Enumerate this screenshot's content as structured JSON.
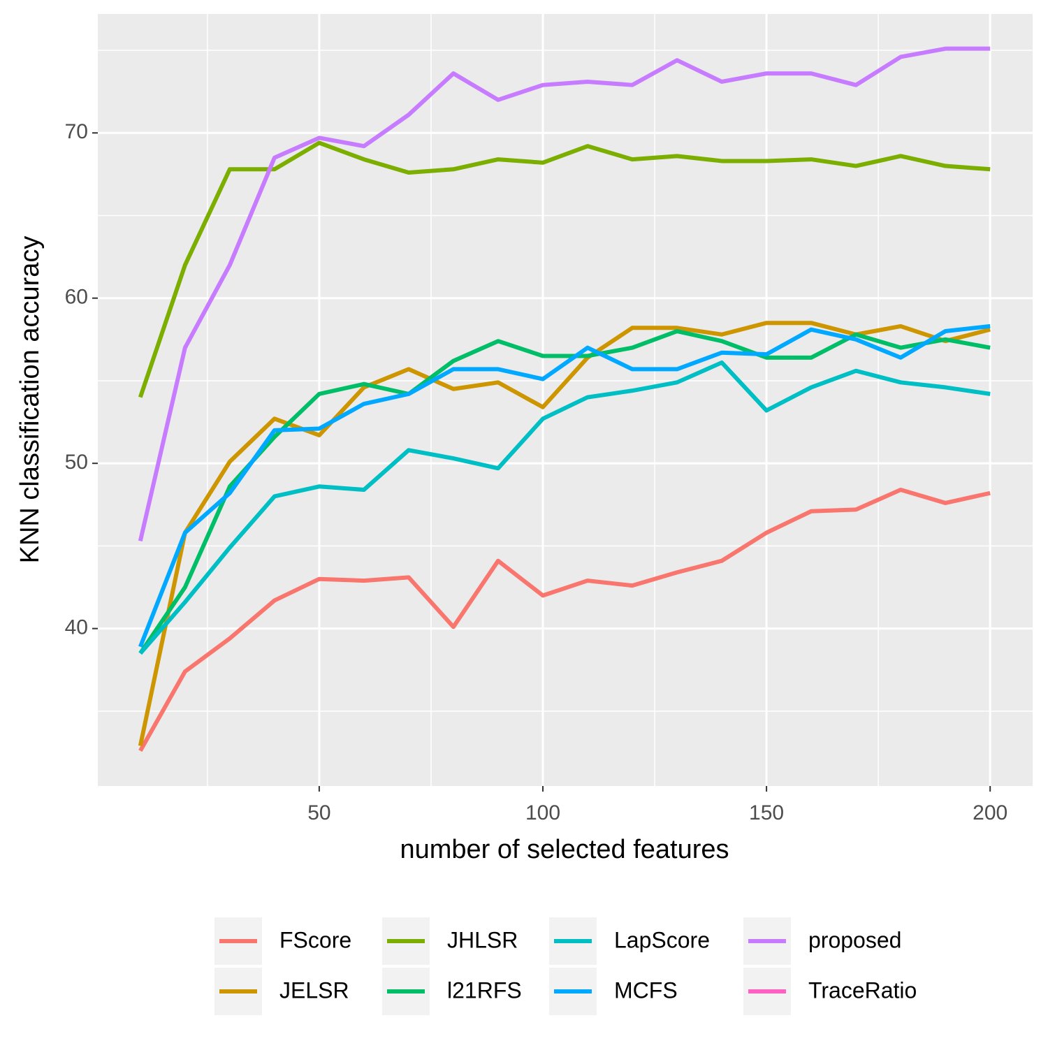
{
  "chart_data": {
    "type": "line",
    "xlabel": "number of selected features",
    "ylabel": "KNN classification accuracy",
    "x": [
      10,
      20,
      30,
      40,
      50,
      60,
      70,
      80,
      90,
      100,
      110,
      120,
      130,
      140,
      150,
      160,
      170,
      180,
      190,
      200
    ],
    "xlim": [
      0.5,
      209.5
    ],
    "xticks": [
      50,
      100,
      150,
      200
    ],
    "xminor_ticks": [
      25,
      75,
      125,
      175
    ],
    "ylim": [
      30.47,
      77.2
    ],
    "yticks": [
      40,
      50,
      60,
      70
    ],
    "yminor_ticks": [
      35,
      45,
      55,
      65,
      75
    ],
    "grid": true,
    "legend": "bottom",
    "series": [
      {
        "name": "FScore",
        "color": "#F8766D",
        "values": [
          32.6,
          37.4,
          39.4,
          41.7,
          43.0,
          42.9,
          43.1,
          40.1,
          44.1,
          42.0,
          42.9,
          42.6,
          43.4,
          44.1,
          45.8,
          47.1,
          47.2,
          48.4,
          47.6,
          48.2
        ]
      },
      {
        "name": "JELSR",
        "color": "#CD9600",
        "values": [
          32.9,
          45.8,
          50.1,
          52.7,
          51.7,
          54.6,
          55.7,
          54.5,
          54.9,
          53.4,
          56.4,
          58.2,
          58.2,
          57.8,
          58.5,
          58.5,
          57.8,
          58.3,
          57.4,
          58.1
        ]
      },
      {
        "name": "JHLSR",
        "color": "#7CAE00",
        "values": [
          54.0,
          62.0,
          67.8,
          67.8,
          69.4,
          68.4,
          67.6,
          67.8,
          68.4,
          68.2,
          69.2,
          68.4,
          68.6,
          68.3,
          68.3,
          68.4,
          68.0,
          68.6,
          68.0,
          67.8
        ]
      },
      {
        "name": "l21RFS",
        "color": "#00BE67",
        "values": [
          38.5,
          42.5,
          48.6,
          51.6,
          54.2,
          54.8,
          54.2,
          56.2,
          57.4,
          56.5,
          56.5,
          57.0,
          58.0,
          57.4,
          56.4,
          56.4,
          57.8,
          57.0,
          57.5,
          57.0
        ]
      },
      {
        "name": "LapScore",
        "color": "#00BFC4",
        "values": [
          38.5,
          41.6,
          44.9,
          48.0,
          48.6,
          48.4,
          50.8,
          50.3,
          49.7,
          52.7,
          54.0,
          54.4,
          54.9,
          56.1,
          53.2,
          54.6,
          55.6,
          54.9,
          54.6,
          54.2
        ]
      },
      {
        "name": "MCFS",
        "color": "#00A9FF",
        "values": [
          38.9,
          45.8,
          48.2,
          52.0,
          52.1,
          53.6,
          54.2,
          55.7,
          55.7,
          55.1,
          57.0,
          55.7,
          55.7,
          56.7,
          56.6,
          58.1,
          57.5,
          56.4,
          58.0,
          58.3
        ]
      },
      {
        "name": "proposed",
        "color": "#C77CFF",
        "values": [
          45.3,
          57.0,
          62.0,
          68.5,
          69.7,
          69.2,
          71.1,
          73.6,
          72.0,
          72.9,
          73.1,
          72.9,
          74.4,
          73.1,
          73.6,
          73.6,
          72.9,
          74.6,
          75.1,
          75.1
        ]
      },
      {
        "name": "TraceRatio",
        "color": "#FF61C3",
        "values": [
          null,
          null,
          null,
          null,
          null,
          null,
          null,
          null,
          null,
          null,
          null,
          null,
          null,
          null,
          null,
          null,
          null,
          null,
          null,
          null
        ]
      }
    ]
  }
}
